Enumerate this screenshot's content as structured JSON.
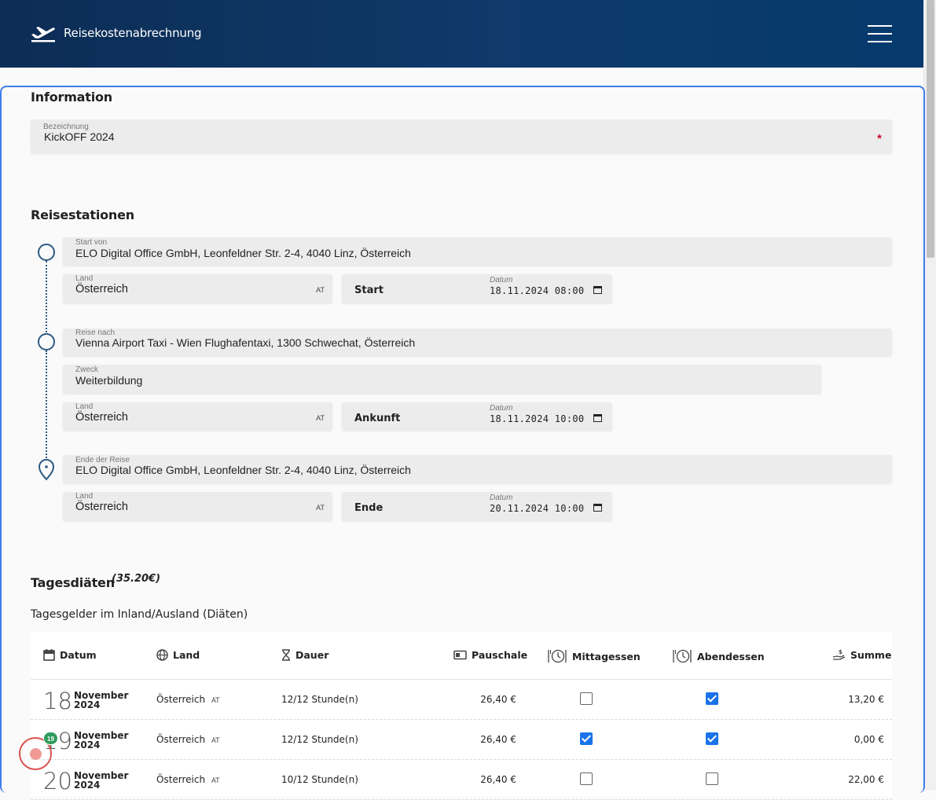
{
  "header": {
    "title": "Reisekostenabrechnung",
    "logo_icon": "airplane-takeoff-icon",
    "menu_icon": "hamburger-menu-icon"
  },
  "information": {
    "title": "Information",
    "bezeichnung": {
      "label": "Bezeichnung",
      "value": "KickOFF 2024",
      "required_mark": "*"
    }
  },
  "reisestationen": {
    "title": "Reisestationen",
    "start": {
      "label": "Start von",
      "value": "ELO Digital Office GmbH, Leonfeldner Str. 2-4, 4040 Linz, Österreich",
      "land_label": "Land",
      "land": "Österreich",
      "land_code": "AT",
      "date_tag": "Start",
      "date_label": "Datum",
      "date_value": "18.11.2024 08:00"
    },
    "ziel": {
      "label": "Reise nach",
      "value": "Vienna Airport Taxi - Wien Flughafentaxi, 1300 Schwechat, Österreich",
      "zweck_label": "Zweck",
      "zweck": "Weiterbildung",
      "land_label": "Land",
      "land": "Österreich",
      "land_code": "AT",
      "date_tag": "Ankunft",
      "date_label": "Datum",
      "date_value": "18.11.2024 10:00"
    },
    "ende": {
      "label": "Ende der Reise",
      "value": "ELO Digital Office GmbH, Leonfeldner Str. 2-4, 4040 Linz, Österreich",
      "land_label": "Land",
      "land": "Österreich",
      "land_code": "AT",
      "date_tag": "Ende",
      "date_label": "Datum",
      "date_value": "20.11.2024 10:00"
    }
  },
  "tagesdiaeten": {
    "title": "Tagesdiäten",
    "sum": "(35.20€)",
    "subtitle": "Tagesgelder im Inland/Ausland (Diäten)",
    "columns": {
      "datum": "Datum",
      "land": "Land",
      "dauer": "Dauer",
      "pauschale": "Pauschale",
      "mittagessen": "Mittagessen",
      "abendessen": "Abendessen",
      "summe": "Summe"
    },
    "rows": [
      {
        "day": "18",
        "month": "November",
        "year": "2024",
        "land": "Österreich",
        "code": "AT",
        "dauer": "12/12  Stunde(n)",
        "pauschale": "26,40 €",
        "mittagessen": false,
        "abendessen": true,
        "summe": "13,20 €"
      },
      {
        "day": "19",
        "month": "November",
        "year": "2024",
        "land": "Österreich",
        "code": "AT",
        "dauer": "12/12  Stunde(n)",
        "pauschale": "26,40 €",
        "mittagessen": true,
        "abendessen": true,
        "summe": "0,00 €"
      },
      {
        "day": "20",
        "month": "November",
        "year": "2024",
        "land": "Österreich",
        "code": "AT",
        "dauer": "10/12  Stunde(n)",
        "pauschale": "26,40 €",
        "mittagessen": false,
        "abendessen": false,
        "summe": "22,00 €"
      }
    ]
  },
  "overlay": {
    "badge": "19"
  }
}
